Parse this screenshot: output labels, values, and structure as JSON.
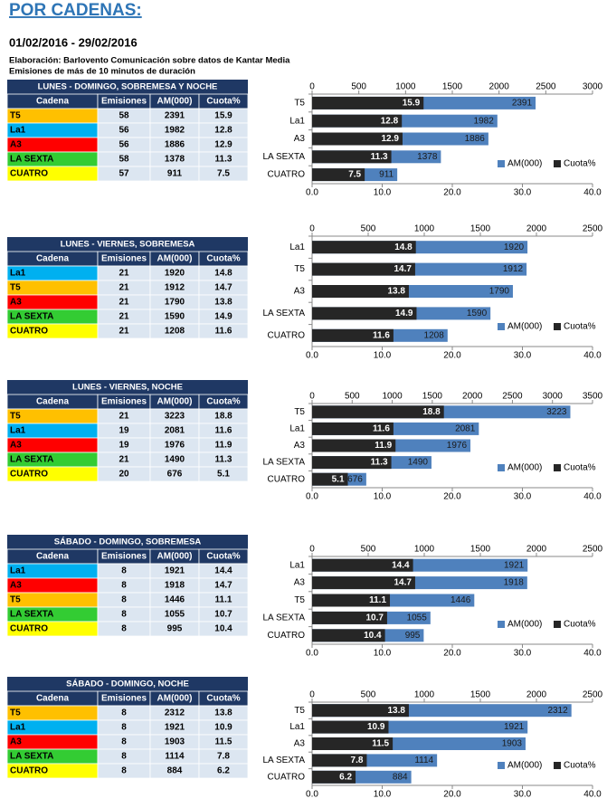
{
  "header": {
    "title": "POR CADENAS:",
    "date": "01/02/2016 - 29/02/2016",
    "notes": [
      "Elaboración: Barlovento Comunicación sobre datos de Kantar Media",
      "Emisiones de más de 10 minutos de duración"
    ]
  },
  "tables": [
    {
      "title": "LUNES - DOMINGO, SOBREMESA Y NOCHE",
      "columns": [
        "Cadena",
        "Emisiones",
        "AM(000)",
        "Cuota%"
      ],
      "row_colors": [
        "#ffc000",
        "#00b0f0",
        "#ff0000",
        "#33cc33",
        "#ffff00"
      ],
      "rows": [
        [
          "T5",
          58,
          2391,
          15.9
        ],
        [
          "La1",
          56,
          1982,
          12.8
        ],
        [
          "A3",
          56,
          1886,
          12.9
        ],
        [
          "LA SEXTA",
          58,
          1378,
          11.3
        ],
        [
          "CUATRO",
          57,
          911,
          7.5
        ]
      ]
    },
    {
      "title": "LUNES - VIERNES, SOBREMESA",
      "columns": [
        "Cadena",
        "Emisiones",
        "AM(000)",
        "Cuota%"
      ],
      "row_colors": [
        "#00b0f0",
        "#ffc000",
        "#ff0000",
        "#33cc33",
        "#ffff00"
      ],
      "rows": [
        [
          "La1",
          21,
          1920,
          14.8
        ],
        [
          "T5",
          21,
          1912,
          14.7
        ],
        [
          "A3",
          21,
          1790,
          13.8
        ],
        [
          "LA SEXTA",
          21,
          1590,
          14.9
        ],
        [
          "CUATRO",
          21,
          1208,
          11.6
        ]
      ]
    },
    {
      "title": "LUNES - VIERNES, NOCHE",
      "columns": [
        "Cadena",
        "Emisiones",
        "AM(000)",
        "Cuota%"
      ],
      "row_colors": [
        "#ffc000",
        "#00b0f0",
        "#ff0000",
        "#33cc33",
        "#ffff00"
      ],
      "rows": [
        [
          "T5",
          21,
          3223,
          18.8
        ],
        [
          "La1",
          19,
          2081,
          11.6
        ],
        [
          "A3",
          19,
          1976,
          11.9
        ],
        [
          "LA SEXTA",
          21,
          1490,
          11.3
        ],
        [
          "CUATRO",
          20,
          676,
          5.1
        ]
      ]
    },
    {
      "title": "SÁBADO - DOMINGO, SOBREMESA",
      "columns": [
        "Cadena",
        "Emisiones",
        "AM(000)",
        "Cuota%"
      ],
      "row_colors": [
        "#00b0f0",
        "#ff0000",
        "#ffc000",
        "#33cc33",
        "#ffff00"
      ],
      "rows": [
        [
          "La1",
          8,
          1921,
          14.4
        ],
        [
          "A3",
          8,
          1918,
          14.7
        ],
        [
          "T5",
          8,
          1446,
          11.1
        ],
        [
          "LA SEXTA",
          8,
          1055,
          10.7
        ],
        [
          "CUATRO",
          8,
          995,
          10.4
        ]
      ]
    },
    {
      "title": "SÁBADO - DOMINGO, NOCHE",
      "columns": [
        "Cadena",
        "Emisiones",
        "AM(000)",
        "Cuota%"
      ],
      "row_colors": [
        "#ffc000",
        "#00b0f0",
        "#ff0000",
        "#33cc33",
        "#ffff00"
      ],
      "rows": [
        [
          "T5",
          8,
          2312,
          13.8
        ],
        [
          "La1",
          8,
          1921,
          10.9
        ],
        [
          "A3",
          8,
          1903,
          11.5
        ],
        [
          "LA SEXTA",
          8,
          1114,
          7.8
        ],
        [
          "CUATRO",
          8,
          884,
          6.2
        ]
      ]
    }
  ],
  "chart_data": [
    {
      "type": "bar",
      "orientation": "horizontal",
      "categories": [
        "T5",
        "La1",
        "A3",
        "LA SEXTA",
        "CUATRO"
      ],
      "series": [
        {
          "name": "AM(000)",
          "color": "#4f81bd",
          "axis": "x",
          "values": [
            2391,
            1982,
            1886,
            1378,
            911
          ]
        },
        {
          "name": "Cuota%",
          "color": "#262626",
          "axis": "x2",
          "values": [
            15.9,
            12.8,
            12.9,
            11.3,
            7.5
          ]
        }
      ],
      "xlim": [
        0,
        3000
      ],
      "xticks": [
        0,
        500,
        1000,
        1500,
        2000,
        2500,
        3000
      ],
      "x2lim": [
        0,
        40
      ],
      "x2ticks": [
        {
          "value": 0,
          "label": "0.0"
        },
        {
          "value": 10,
          "label": "10.0"
        },
        {
          "value": 20,
          "label": "20.0"
        },
        {
          "value": 30,
          "label": "30.0"
        },
        {
          "value": 40,
          "label": "40.0"
        }
      ],
      "legend": "bottom-right"
    },
    {
      "type": "bar",
      "orientation": "horizontal",
      "categories": [
        "La1",
        "T5",
        "A3",
        "LA SEXTA",
        "CUATRO"
      ],
      "series": [
        {
          "name": "AM(000)",
          "color": "#4f81bd",
          "axis": "x",
          "values": [
            1920,
            1912,
            1790,
            1590,
            1208
          ]
        },
        {
          "name": "Cuota%",
          "color": "#262626",
          "axis": "x2",
          "values": [
            14.8,
            14.7,
            13.8,
            14.9,
            11.6
          ]
        }
      ],
      "xlim": [
        0,
        2500
      ],
      "xticks": [
        0,
        500,
        1000,
        1500,
        2000,
        2500
      ],
      "x2lim": [
        0,
        40
      ],
      "x2ticks": [
        {
          "value": 0,
          "label": "0.0"
        },
        {
          "value": 10,
          "label": "10.0"
        },
        {
          "value": 20,
          "label": "20.0"
        },
        {
          "value": 30,
          "label": "30.0"
        },
        {
          "value": 40,
          "label": "40.0"
        }
      ],
      "legend": "bottom-right"
    },
    {
      "type": "bar",
      "orientation": "horizontal",
      "categories": [
        "T5",
        "La1",
        "A3",
        "LA SEXTA",
        "CUATRO"
      ],
      "series": [
        {
          "name": "AM(000)",
          "color": "#4f81bd",
          "axis": "x",
          "values": [
            3223,
            2081,
            1976,
            1490,
            676
          ]
        },
        {
          "name": "Cuota%",
          "color": "#262626",
          "axis": "x2",
          "values": [
            18.8,
            11.6,
            11.9,
            11.3,
            5.1
          ]
        }
      ],
      "xlim": [
        0,
        3500
      ],
      "xticks": [
        0,
        500,
        1000,
        1500,
        2000,
        2500,
        3000,
        3500
      ],
      "x2lim": [
        0,
        40
      ],
      "x2ticks": [
        {
          "value": 0,
          "label": "0.0"
        },
        {
          "value": 10,
          "label": "10.0"
        },
        {
          "value": 20,
          "label": "20.0"
        },
        {
          "value": 30,
          "label": "30.0"
        },
        {
          "value": 40,
          "label": "40.0"
        }
      ],
      "legend": "bottom-right"
    },
    {
      "type": "bar",
      "orientation": "horizontal",
      "categories": [
        "La1",
        "A3",
        "T5",
        "LA SEXTA",
        "CUATRO"
      ],
      "series": [
        {
          "name": "AM(000)",
          "color": "#4f81bd",
          "axis": "x",
          "values": [
            1921,
            1918,
            1446,
            1055,
            995
          ]
        },
        {
          "name": "Cuota%",
          "color": "#262626",
          "axis": "x2",
          "values": [
            14.4,
            14.7,
            11.1,
            10.7,
            10.4
          ]
        }
      ],
      "xlim": [
        0,
        2500
      ],
      "xticks": [
        0,
        500,
        1000,
        1500,
        2000,
        2500
      ],
      "x2lim": [
        0,
        40
      ],
      "x2ticks": [
        {
          "value": 0,
          "label": "0.0"
        },
        {
          "value": 10,
          "label": "10.0"
        },
        {
          "value": 20,
          "label": "20.0"
        },
        {
          "value": 30,
          "label": "30.0"
        },
        {
          "value": 40,
          "label": "40.0"
        }
      ],
      "legend": "bottom-right"
    },
    {
      "type": "bar",
      "orientation": "horizontal",
      "categories": [
        "T5",
        "La1",
        "A3",
        "LA SEXTA",
        "CUATRO"
      ],
      "series": [
        {
          "name": "AM(000)",
          "color": "#4f81bd",
          "axis": "x",
          "values": [
            2312,
            1921,
            1903,
            1114,
            884
          ]
        },
        {
          "name": "Cuota%",
          "color": "#262626",
          "axis": "x2",
          "values": [
            13.8,
            10.9,
            11.5,
            7.8,
            6.2
          ]
        }
      ],
      "xlim": [
        0,
        2500
      ],
      "xticks": [
        0,
        500,
        1000,
        1500,
        2000,
        2500
      ],
      "x2lim": [
        0,
        40
      ],
      "x2ticks": [
        {
          "value": 0,
          "label": "0.0"
        },
        {
          "value": 10,
          "label": "10.0"
        },
        {
          "value": 20,
          "label": "20.0"
        },
        {
          "value": 30,
          "label": "30.0"
        },
        {
          "value": 40,
          "label": "40.0"
        }
      ],
      "legend": "bottom-right"
    }
  ]
}
